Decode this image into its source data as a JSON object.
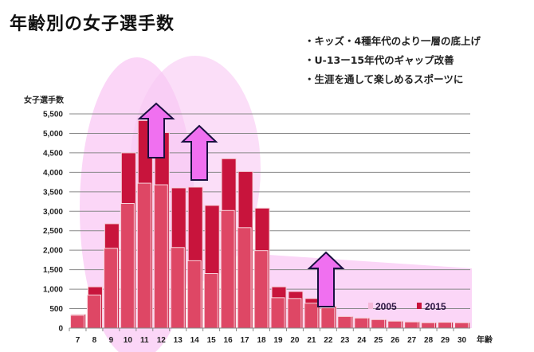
{
  "title": "年齢別の女子選手数",
  "bullets": [
    "・キッズ・4種年代のより一層の底上げ",
    "・U-13ー15年代のギャップ改善",
    "・生涯を通して楽しめるスポーツに"
  ],
  "colors": {
    "s2005": "#e04a68",
    "s2015": "#c8143c",
    "highlight": "#f9c8f4",
    "arrow": "#f070f0"
  },
  "chart_data": {
    "type": "bar",
    "title": "年齢別の女子選手数",
    "ylabel": "女子選手数",
    "xlabel": "年齢",
    "ylim": [
      0,
      5500
    ],
    "yticks": [
      "0",
      "500",
      "1,000",
      "1,500",
      "2,000",
      "2,500",
      "3,000",
      "3,500",
      "4,000",
      "4,500",
      "5,000",
      "5,500"
    ],
    "ytick_values": [
      0,
      500,
      1000,
      1500,
      2000,
      2500,
      3000,
      3500,
      4000,
      4500,
      5000,
      5500
    ],
    "categories": [
      "7",
      "8",
      "9",
      "10",
      "11",
      "12",
      "13",
      "14",
      "15",
      "16",
      "17",
      "18",
      "19",
      "20",
      "21",
      "22",
      "23",
      "24",
      "25",
      "26",
      "27",
      "28",
      "29",
      "30"
    ],
    "series": [
      {
        "name": "2015",
        "values": [
          350,
          1060,
          2680,
          4500,
          5330,
          5020,
          3600,
          3620,
          3150,
          4350,
          4020,
          3080,
          1060,
          940,
          760,
          560,
          300,
          260,
          220,
          180,
          160,
          140,
          150,
          140
        ]
      },
      {
        "name": "2005",
        "values": [
          330,
          850,
          2050,
          3200,
          3720,
          3680,
          2070,
          1730,
          1400,
          3020,
          2580,
          1990,
          780,
          760,
          640,
          520,
          300,
          260,
          220,
          180,
          160,
          140,
          150,
          140
        ]
      }
    ],
    "legend": [
      "2005",
      "2015"
    ],
    "legend_position": "bottom-right",
    "grid": true
  }
}
